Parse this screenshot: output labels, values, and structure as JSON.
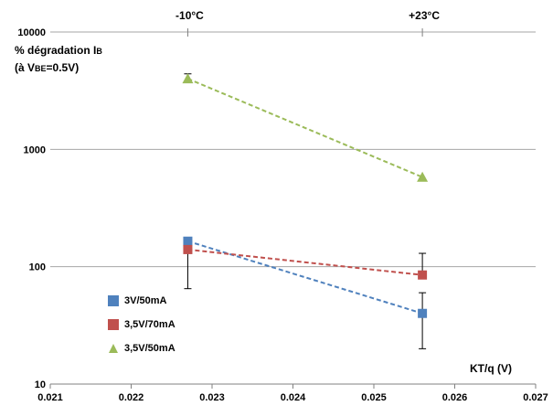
{
  "chart_data": {
    "type": "scatter",
    "title": "",
    "ylabel_line1": "% dégradation I",
    "ylabel_sub1": "B",
    "ylabel_line2_pre": "(à V",
    "ylabel_sub2": "BE",
    "ylabel_line2_post": "=0.5V)",
    "xlabel": "KT/q (V)",
    "xlim": [
      0.021,
      0.027
    ],
    "ylim": [
      10,
      10000
    ],
    "yscale": "log",
    "x_ticks": [
      "0.021",
      "0.022",
      "0.023",
      "0.024",
      "0.025",
      "0.026",
      "0.027"
    ],
    "y_ticks": [
      "10",
      "100",
      "1000",
      "10000"
    ],
    "top_annotations": [
      {
        "x": 0.0227,
        "label": "-10°C"
      },
      {
        "x": 0.0256,
        "label": "+23°C"
      }
    ],
    "grid": "horizontal",
    "legend_position": "bottom-left",
    "series": [
      {
        "name": "3V/50mA",
        "color": "#4f81bd",
        "marker": "square",
        "x": [
          0.0227,
          0.0256
        ],
        "y": [
          165,
          40
        ],
        "err_low": [
          0,
          20
        ],
        "err_high": [
          0,
          60
        ]
      },
      {
        "name": "3,5V/70mA",
        "color": "#c0504d",
        "marker": "square",
        "x": [
          0.0227,
          0.0256
        ],
        "y": [
          140,
          85
        ],
        "err_low": [
          0,
          0
        ],
        "err_high": [
          65,
          130
        ]
      },
      {
        "name": "3,5V/50mA",
        "color": "#9bbb59",
        "marker": "triangle",
        "x": [
          0.0227,
          0.0256
        ],
        "y": [
          4000,
          580
        ],
        "err_low": [
          3700,
          0
        ],
        "err_high": [
          4400,
          0
        ]
      }
    ]
  }
}
